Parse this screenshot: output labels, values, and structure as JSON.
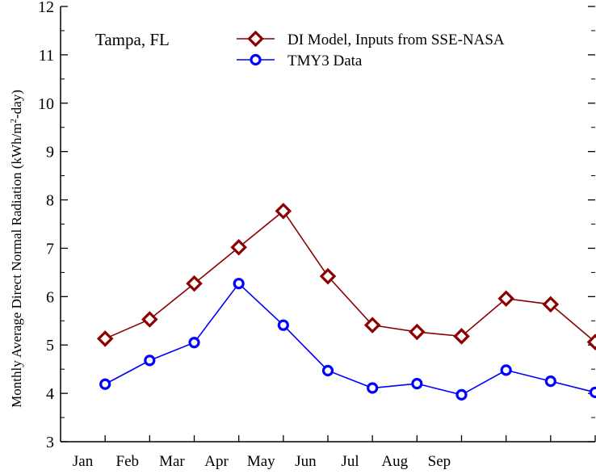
{
  "chart_data": {
    "type": "line",
    "annotation": "Tampa, FL",
    "ylabel_pre": "Monthly Average Direct Normal Radiation (kWh/m",
    "ylabel_sup": "2",
    "ylabel_post": "-day)",
    "xlabel": "",
    "ylim": [
      3,
      12
    ],
    "yticks": [
      3,
      4,
      5,
      6,
      7,
      8,
      9,
      10,
      11,
      12
    ],
    "x_tick_labels": [
      "Jan",
      "Feb",
      "Mar",
      "Apr",
      "May",
      "Jun",
      "Jul",
      "Aug",
      "Sep"
    ],
    "x_tick_positions": [
      0.5,
      1.5,
      2.5,
      3.5,
      4.5,
      5.5,
      6.5,
      7.5,
      8.5
    ],
    "xlim": [
      0,
      12
    ],
    "legend_position": "top-right",
    "grid": false,
    "series": [
      {
        "name": "DI Model, Inputs from SSE-NASA",
        "color": "#8b0000",
        "marker": "diamond",
        "x": [
          1,
          2,
          3,
          4,
          5,
          6,
          7,
          8,
          9,
          10,
          11,
          12
        ],
        "values": [
          5.13,
          5.53,
          6.27,
          7.02,
          7.77,
          6.42,
          5.41,
          5.27,
          5.18,
          5.96,
          5.84,
          5.06
        ]
      },
      {
        "name": "TMY3 Data",
        "color": "#0000ff",
        "marker": "circle",
        "x": [
          1,
          2,
          3,
          4,
          5,
          6,
          7,
          8,
          9,
          10,
          11,
          12
        ],
        "values": [
          4.19,
          4.68,
          5.05,
          6.27,
          5.41,
          4.47,
          4.11,
          4.2,
          3.97,
          4.48,
          4.25,
          4.02
        ]
      }
    ]
  }
}
